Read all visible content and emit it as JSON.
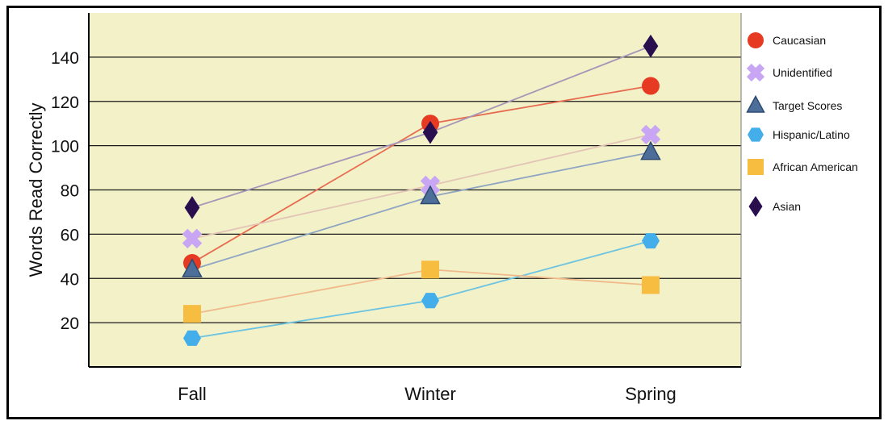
{
  "chart_data": {
    "type": "line",
    "title": "",
    "xlabel": "",
    "ylabel": "Words Read Correctly",
    "categories": [
      "Fall",
      "Winter",
      "Spring"
    ],
    "yticks": [
      20,
      40,
      60,
      80,
      100,
      120,
      140
    ],
    "ylim": [
      0,
      160
    ],
    "grid": true,
    "legend_position": "right",
    "plot_background": "#f2f1c8",
    "series": [
      {
        "name": "Caucasian",
        "marker": "circle",
        "color": "#e63b22",
        "line_color": "#e86b50",
        "values": [
          47,
          110,
          127
        ]
      },
      {
        "name": "Unidentified",
        "marker": "x",
        "color": "#c8a6f4",
        "line_color": "#e3c4b6",
        "values": [
          58,
          82,
          105
        ]
      },
      {
        "name": "Target Scores",
        "marker": "triangle",
        "color": "#4d6e98",
        "line_color": "#8fa5c2",
        "values": [
          44,
          77,
          97
        ]
      },
      {
        "name": "Hispanic/Latino",
        "marker": "hexagon",
        "color": "#44aeea",
        "line_color": "#6cc4e2",
        "values": [
          13,
          30,
          57
        ]
      },
      {
        "name": "African American",
        "marker": "square",
        "color": "#f6bd40",
        "line_color": "#f0b98a",
        "values": [
          24,
          44,
          37
        ]
      },
      {
        "name": "Asian",
        "marker": "diamond",
        "color": "#2a0f4e",
        "line_color": "#a596b8",
        "values": [
          72,
          106,
          145
        ]
      }
    ]
  }
}
